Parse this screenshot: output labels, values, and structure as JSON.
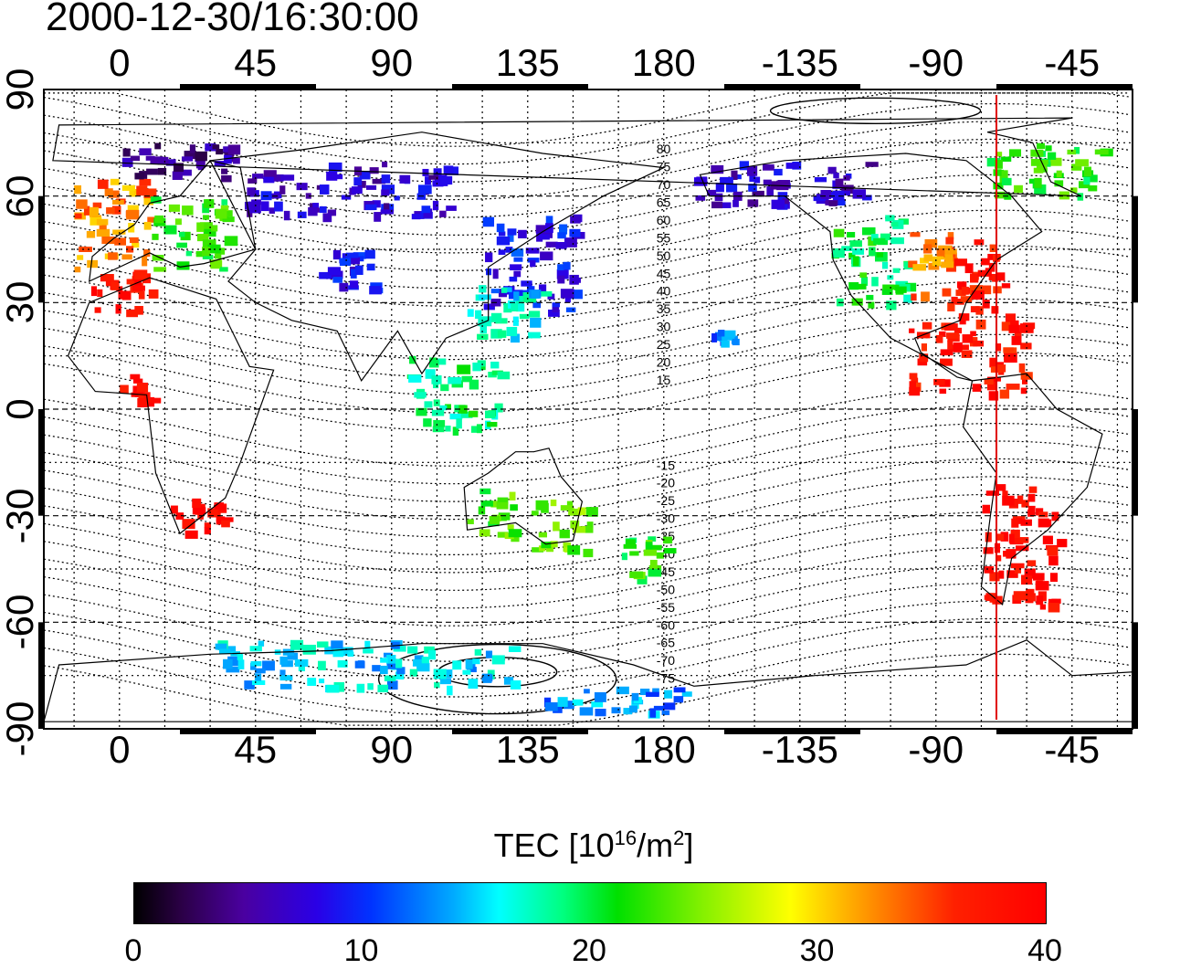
{
  "title": "2000-12-30/16:30:00",
  "lon_ticks": [
    "0",
    "45",
    "90",
    "135",
    "180",
    "-135",
    "-90",
    "-45"
  ],
  "lat_ticks": [
    "90",
    "60",
    "30",
    "0",
    "-30",
    "-60",
    "-90"
  ],
  "contour_labels": [
    "80",
    "75",
    "70",
    "65",
    "60",
    "55",
    "50",
    "45",
    "40",
    "35",
    "30",
    "25",
    "20",
    "15",
    "-15",
    "-20",
    "-25",
    "-30",
    "-35",
    "-40",
    "-45",
    "-50",
    "-55",
    "-60",
    "-65",
    "-70",
    "-75"
  ],
  "colorbar": {
    "title_main": "TEC  [10",
    "title_exp": "16",
    "title_mid": "/m",
    "title_exp2": "2",
    "title_end": "]",
    "labels": [
      "0",
      "10",
      "20",
      "30",
      "40"
    ],
    "range": [
      0,
      40
    ]
  },
  "marker_line": {
    "longitude": -70,
    "color": "#e00000"
  },
  "colors": {
    "frame": "#000000",
    "grid": "#000000",
    "marker": "#e00000"
  },
  "regions": [
    {
      "name": "europe-west",
      "lon": [
        -15,
        10
      ],
      "lat": [
        40,
        65
      ],
      "tec": 33
    },
    {
      "name": "europe-central",
      "lon": [
        10,
        35
      ],
      "lat": [
        40,
        60
      ],
      "tec": 22
    },
    {
      "name": "scandinavia",
      "lon": [
        0,
        40
      ],
      "lat": [
        65,
        75
      ],
      "tec": 5
    },
    {
      "name": "iberia",
      "lon": [
        -10,
        10
      ],
      "lat": [
        28,
        40
      ],
      "tec": 38
    },
    {
      "name": "russia",
      "lon": [
        40,
        110
      ],
      "lat": [
        55,
        70
      ],
      "tec": 7
    },
    {
      "name": "central-asia",
      "lon": [
        65,
        85
      ],
      "lat": [
        33,
        45
      ],
      "tec": 9
    },
    {
      "name": "east-asia",
      "lon": [
        120,
        150
      ],
      "lat": [
        28,
        55
      ],
      "tec": 9
    },
    {
      "name": "japan-china",
      "lon": [
        115,
        140
      ],
      "lat": [
        20,
        35
      ],
      "tec": 16
    },
    {
      "name": "alaska-canada",
      "lon": [
        -170,
        -110
      ],
      "lat": [
        58,
        70
      ],
      "tec": 7
    },
    {
      "name": "north-america-west",
      "lon": [
        -125,
        -100
      ],
      "lat": [
        30,
        55
      ],
      "tec": 20
    },
    {
      "name": "north-america-central",
      "lon": [
        -100,
        -85
      ],
      "lat": [
        30,
        50
      ],
      "tec": 33
    },
    {
      "name": "north-america-east",
      "lon": [
        -85,
        -65
      ],
      "lat": [
        25,
        48
      ],
      "tec": 38
    },
    {
      "name": "central-america",
      "lon": [
        -100,
        -60
      ],
      "lat": [
        5,
        25
      ],
      "tec": 38
    },
    {
      "name": "hawaii",
      "lon": [
        -165,
        -155
      ],
      "lat": [
        18,
        24
      ],
      "tec": 12
    },
    {
      "name": "south-america",
      "lon": [
        -75,
        -50
      ],
      "lat": [
        -55,
        -20
      ],
      "tec": 39
    },
    {
      "name": "southern-africa",
      "lon": [
        15,
        35
      ],
      "lat": [
        -35,
        -25
      ],
      "tec": 39
    },
    {
      "name": "west-africa",
      "lon": [
        0,
        10
      ],
      "lat": [
        0,
        10
      ],
      "tec": 39
    },
    {
      "name": "australia-east",
      "lon": [
        135,
        155
      ],
      "lat": [
        -40,
        -25
      ],
      "tec": 24
    },
    {
      "name": "australia-west",
      "lon": [
        115,
        130
      ],
      "lat": [
        -35,
        -22
      ],
      "tec": 23
    },
    {
      "name": "new-zealand",
      "lon": [
        165,
        180
      ],
      "lat": [
        -48,
        -35
      ],
      "tec": 22
    },
    {
      "name": "southeast-asia",
      "lon": [
        95,
        125
      ],
      "lat": [
        -5,
        15
      ],
      "tec": 19
    },
    {
      "name": "antarctica",
      "lon": [
        30,
        130
      ],
      "lat": [
        -78,
        -65
      ],
      "tec": 15
    },
    {
      "name": "antarctica-ross",
      "lon": [
        140,
        190
      ],
      "lat": [
        -85,
        -78
      ],
      "tec": 13
    },
    {
      "name": "greenland",
      "lon": [
        -75,
        -35
      ],
      "lat": [
        60,
        75
      ],
      "tec": 22
    }
  ]
}
